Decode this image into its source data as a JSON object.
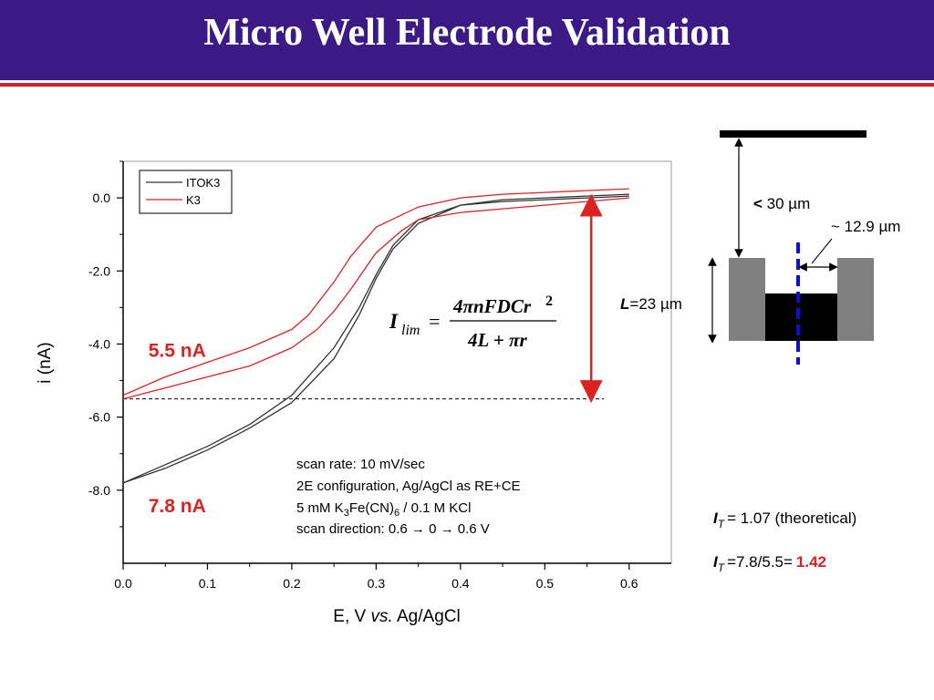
{
  "slide": {
    "title": "Micro Well Electrode Validation",
    "colors": {
      "title_bg": "#3b1a85",
      "accent_line": "#cc2222"
    }
  },
  "chart_data": {
    "type": "line",
    "xlabel": "E, V vs. Ag/AgCl",
    "xlabel_parts": [
      "E, V ",
      "vs.",
      " Ag/AgCl"
    ],
    "ylabel": "i (nA)",
    "xlim": [
      0.0,
      0.65
    ],
    "ylim": [
      -10.0,
      1.0
    ],
    "xticks": [
      0.0,
      0.1,
      0.2,
      0.3,
      0.4,
      0.5,
      0.6
    ],
    "xtick_labels": [
      "0.0",
      "0.1",
      "0.2",
      "0.3",
      "0.4",
      "0.5",
      "0.6"
    ],
    "yticks": [
      0.0,
      -2.0,
      -4.0,
      -6.0,
      -8.0
    ],
    "ytick_labels": [
      "0.0",
      "-2.0",
      "-4.0",
      "-6.0",
      "-8.0"
    ],
    "grid": false,
    "legend_position": "top-left",
    "series": [
      {
        "name": "ITOK3",
        "color": "#333333",
        "forward": {
          "x": [
            0.0,
            0.05,
            0.1,
            0.15,
            0.2,
            0.25,
            0.28,
            0.3,
            0.32,
            0.35,
            0.4,
            0.45,
            0.5,
            0.55,
            0.6
          ],
          "y": [
            -7.8,
            -7.3,
            -6.8,
            -6.2,
            -5.4,
            -4.1,
            -3.0,
            -2.1,
            -1.3,
            -0.6,
            -0.2,
            -0.1,
            -0.05,
            0.0,
            0.05
          ]
        },
        "reverse": {
          "x": [
            0.6,
            0.55,
            0.5,
            0.45,
            0.4,
            0.35,
            0.32,
            0.3,
            0.28,
            0.25,
            0.2,
            0.15,
            0.1,
            0.05,
            0.0
          ],
          "y": [
            0.1,
            0.05,
            0.0,
            -0.05,
            -0.2,
            -0.7,
            -1.4,
            -2.2,
            -3.2,
            -4.4,
            -5.6,
            -6.3,
            -6.9,
            -7.4,
            -7.8
          ]
        }
      },
      {
        "name": "K3",
        "color": "#dd2222",
        "forward": {
          "x": [
            0.0,
            0.05,
            0.1,
            0.15,
            0.2,
            0.23,
            0.25,
            0.27,
            0.3,
            0.33,
            0.35,
            0.4,
            0.45,
            0.5,
            0.55,
            0.6
          ],
          "y": [
            -5.5,
            -5.2,
            -4.9,
            -4.6,
            -4.1,
            -3.6,
            -3.1,
            -2.5,
            -1.5,
            -0.9,
            -0.6,
            -0.4,
            -0.3,
            -0.2,
            -0.1,
            0.0
          ]
        },
        "reverse": {
          "x": [
            0.6,
            0.55,
            0.5,
            0.45,
            0.4,
            0.35,
            0.3,
            0.27,
            0.25,
            0.22,
            0.2,
            0.15,
            0.1,
            0.05,
            0.0
          ],
          "y": [
            0.25,
            0.2,
            0.15,
            0.1,
            0.0,
            -0.25,
            -0.8,
            -1.6,
            -2.3,
            -3.2,
            -3.6,
            -4.1,
            -4.5,
            -4.9,
            -5.4
          ]
        }
      }
    ],
    "reference_line": {
      "y": -5.5,
      "x_end": 0.57,
      "style": "dashed"
    },
    "annotation_arrow": {
      "x": 0.555,
      "y_from": 0.0,
      "y_to": -5.5,
      "color": "#dd2222"
    },
    "labels": [
      {
        "text": "5.5 nA",
        "x": 0.03,
        "y": -4.35,
        "color": "#dd2222"
      },
      {
        "text": "7.8 nA",
        "x": 0.03,
        "y": -8.6,
        "color": "#dd2222"
      }
    ],
    "conditions": [
      "scan rate: 10 mV/sec",
      "2E configuration, Ag/AgCl as RE+CE",
      "5 mM K3Fe(CN)6 / 0.1 M KCl",
      "scan direction: 0.6 → 0 → 0.6 V"
    ],
    "condition_parts": {
      "k3_pre": "5 mM K",
      "k3_sub": "3",
      "k3_mid": "Fe(CN)",
      "k3_sub2": "6",
      "k3_post": " / 0.1 M KCl",
      "dir_pre": "scan direction: 0.6 ",
      "dir_arrow": "→",
      "dir_mid": " 0 ",
      "dir_post": " 0.6 V"
    },
    "equation": {
      "lhs_main": "I",
      "lhs_sub": "lim",
      "equals": "=",
      "numerator": "4πnFDCr",
      "numerator_sup": "2",
      "denominator": "4L + πr"
    }
  },
  "diagram": {
    "gap_label_lt": "<",
    "gap_label": "30 µm",
    "radius_label": "~ 12.9 µm",
    "depth_label_L": "L",
    "depth_label": "=23 µm"
  },
  "results": {
    "theory_I": "I",
    "theory_sub": "T",
    "theory_text": "= 1.07 (theoretical)",
    "exp_I": "I",
    "exp_sub": "T",
    "exp_text": "=7.8/5.5=",
    "exp_value": "1.42",
    "exp_value_color": "#dd2222"
  }
}
